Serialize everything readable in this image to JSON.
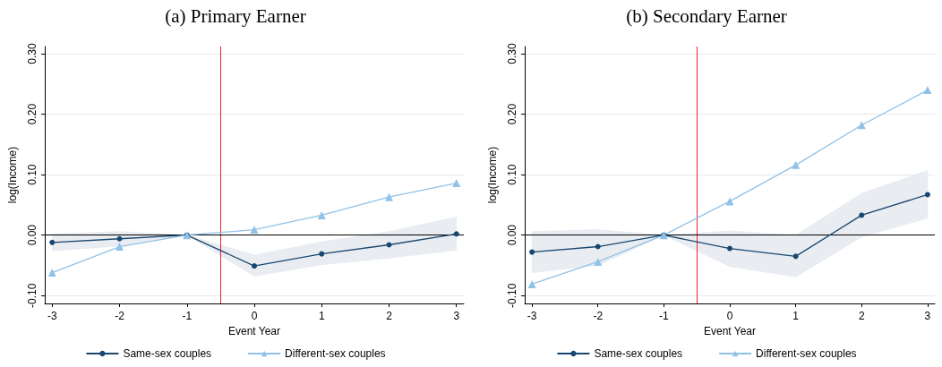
{
  "chart_data": [
    {
      "type": "line",
      "title": "(a) Primary Earner",
      "xlabel": "Event Year",
      "ylabel": "log(Income)",
      "x": [
        -3,
        -2,
        -1,
        0,
        1,
        2,
        3
      ],
      "xlim": [
        -3.11,
        3.11
      ],
      "xticks": [
        -3,
        -2,
        -1,
        0,
        1,
        2,
        3
      ],
      "ylim": [
        -0.113,
        0.312
      ],
      "yticks": [
        {
          "value": -0.1,
          "label": "-0.10"
        },
        {
          "value": 0,
          "label": "0.00"
        },
        {
          "value": 0.1,
          "label": "0.10"
        },
        {
          "value": 0.2,
          "label": "0.20"
        },
        {
          "value": 0.3,
          "label": "0.30"
        }
      ],
      "grid": "y",
      "legend": "bottom",
      "ref_lines": [
        {
          "axis": "x",
          "value": -0.5,
          "color": "#e8232a"
        },
        {
          "axis": "y",
          "value": 0,
          "color": "#000000"
        }
      ],
      "series": [
        {
          "name": "Same-sex couples",
          "color": "#1a476f",
          "marker": "circle",
          "values": [
            -0.012,
            -0.006,
            0,
            -0.051,
            -0.031,
            -0.016,
            0.002
          ],
          "lower": [
            -0.026,
            -0.018,
            0,
            -0.068,
            -0.049,
            -0.038,
            -0.025
          ],
          "upper": [
            0.002,
            0.006,
            0,
            -0.033,
            -0.011,
            0.006,
            0.03
          ]
        },
        {
          "name": "Different-sex couples",
          "color": "#90c2e8",
          "marker": "triangle",
          "values": [
            -0.062,
            -0.019,
            0,
            0.009,
            0.033,
            0.063,
            0.086
          ]
        }
      ]
    },
    {
      "type": "line",
      "title": "(b) Secondary Earner",
      "xlabel": "Event Year",
      "ylabel": "log(Income)",
      "x": [
        -3,
        -2,
        -1,
        0,
        1,
        2,
        3
      ],
      "xlim": [
        -3.11,
        3.11
      ],
      "xticks": [
        -3,
        -2,
        -1,
        0,
        1,
        2,
        3
      ],
      "ylim": [
        -0.113,
        0.312
      ],
      "yticks": [
        {
          "value": -0.1,
          "label": "-0.10"
        },
        {
          "value": 0,
          "label": "0.00"
        },
        {
          "value": 0.1,
          "label": "0.10"
        },
        {
          "value": 0.2,
          "label": "0.20"
        },
        {
          "value": 0.3,
          "label": "0.30"
        }
      ],
      "grid": "y",
      "legend": "bottom",
      "ref_lines": [
        {
          "axis": "x",
          "value": -0.5,
          "color": "#e8232a"
        },
        {
          "axis": "y",
          "value": 0,
          "color": "#000000"
        }
      ],
      "series": [
        {
          "name": "Same-sex couples",
          "color": "#1a476f",
          "marker": "circle",
          "values": [
            -0.028,
            -0.019,
            0,
            -0.022,
            -0.035,
            0.033,
            0.067
          ],
          "lower": [
            -0.062,
            -0.05,
            0,
            -0.052,
            -0.069,
            -0.003,
            0.028
          ],
          "upper": [
            0.006,
            0.009,
            0,
            0.007,
            0.0,
            0.069,
            0.107
          ]
        },
        {
          "name": "Different-sex couples",
          "color": "#90c2e8",
          "marker": "triangle",
          "values": [
            -0.081,
            -0.044,
            0,
            0.056,
            0.116,
            0.182,
            0.24
          ]
        }
      ]
    }
  ]
}
